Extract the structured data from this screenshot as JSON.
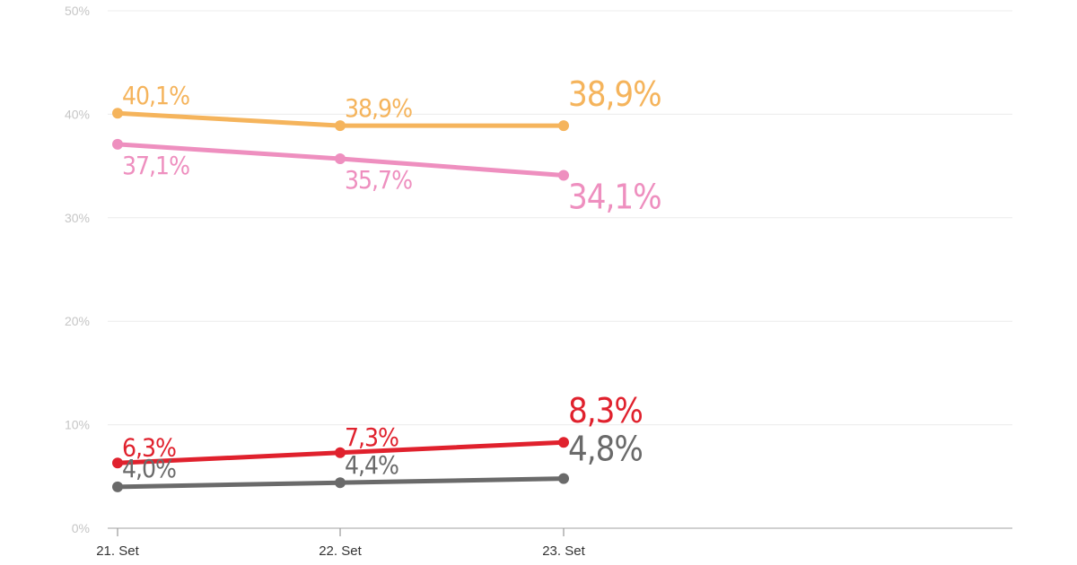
{
  "chart_data": {
    "type": "line",
    "title": "",
    "xlabel": "",
    "ylabel": "",
    "categories": [
      "21. Set",
      "22. Set",
      "23. Set"
    ],
    "ylim": [
      0,
      50
    ],
    "yticks": [
      0,
      10,
      20,
      30,
      40,
      50
    ],
    "ytick_labels": [
      "0%",
      "10%",
      "20%",
      "30%",
      "40%",
      "50%"
    ],
    "grid": true,
    "legend": "none",
    "series": [
      {
        "color": "#f5b45c",
        "values": [
          40.1,
          38.9,
          38.9
        ],
        "labels": [
          "40,1%",
          "38,9%",
          "38,9%"
        ]
      },
      {
        "color": "#ee8fbf",
        "values": [
          37.1,
          35.7,
          34.1
        ],
        "labels": [
          "37,1%",
          "35,7%",
          "34,1%"
        ]
      },
      {
        "color": "#e0212d",
        "values": [
          6.3,
          7.3,
          8.3
        ],
        "labels": [
          "6,3%",
          "7,3%",
          "8,3%"
        ]
      },
      {
        "color": "#6a6a6a",
        "values": [
          4.0,
          4.4,
          4.8
        ],
        "labels": [
          "4,0%",
          "4,4%",
          "4,8%"
        ]
      }
    ]
  }
}
